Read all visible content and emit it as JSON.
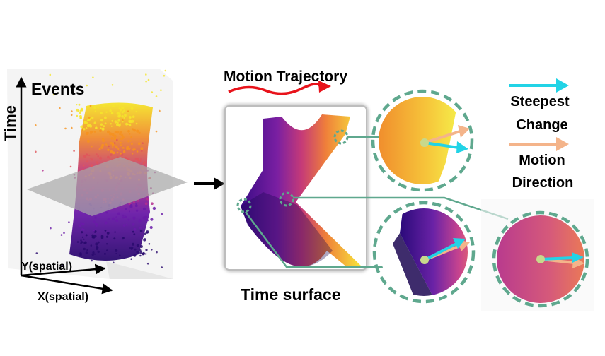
{
  "labels": {
    "events": "Events",
    "time_axis": "Time",
    "y_axis": "Y(spatial)",
    "x_axis": "X(spatial)",
    "motion_trajectory": "Motion Trajectory",
    "time_surface": "Time surface",
    "legend_steepest_1": "Steepest",
    "legend_steepest_2": "Change",
    "legend_motion_1": "Motion",
    "legend_motion_2": "Direction"
  },
  "colors": {
    "steepest_change_arrow": "#22d3e6",
    "motion_direction_arrow": "#f4b48a",
    "trajectory_arrow": "#e8131b",
    "callout_dashed_circle": "#5fa88e",
    "center_dot": "#c8d88c",
    "plane": "#a8a8a8",
    "colormap": [
      "#2a0a6e",
      "#6a1aa8",
      "#b42e8e",
      "#e0555a",
      "#f6921e",
      "#f5e52a"
    ]
  },
  "icons": {
    "flow_arrow": "right-arrow-icon",
    "legend_cyan": "cyan-arrow-icon",
    "legend_peach": "peach-arrow-icon"
  }
}
